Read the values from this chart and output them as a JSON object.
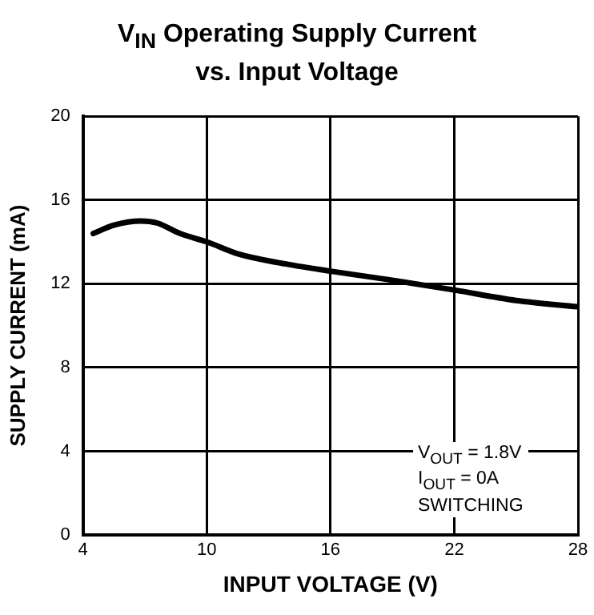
{
  "chart_data": {
    "type": "line",
    "title": "V$_{IN}$ Operating Supply Current\nvs. Input Voltage",
    "xlabel": "INPUT VOLTAGE (V)",
    "ylabel": "SUPPLY CURRENT (mA)",
    "xlim": [
      4,
      28
    ],
    "xticks": [
      4,
      10,
      16,
      22,
      28
    ],
    "ylim": [
      0,
      20
    ],
    "yticks": [
      0,
      4,
      8,
      12,
      16,
      20
    ],
    "grid": true,
    "legend": false,
    "marker": "none",
    "line_style": "solid",
    "annotations": [
      "V$_{OUT}$ = 1.8V",
      "I$_{OUT}$ = 0A",
      "SWITCHING"
    ],
    "series": [
      {
        "color": "#000000",
        "x": [
          4.5,
          5.5,
          6.8,
          7.6,
          8.7,
          10,
          11.6,
          13.5,
          16,
          18.8,
          22,
          25,
          28
        ],
        "values": [
          14.4,
          14.8,
          15,
          14.9,
          14.4,
          14,
          13.4,
          13,
          12.6,
          12.2,
          11.7,
          11.2,
          10.9
        ]
      }
    ]
  }
}
